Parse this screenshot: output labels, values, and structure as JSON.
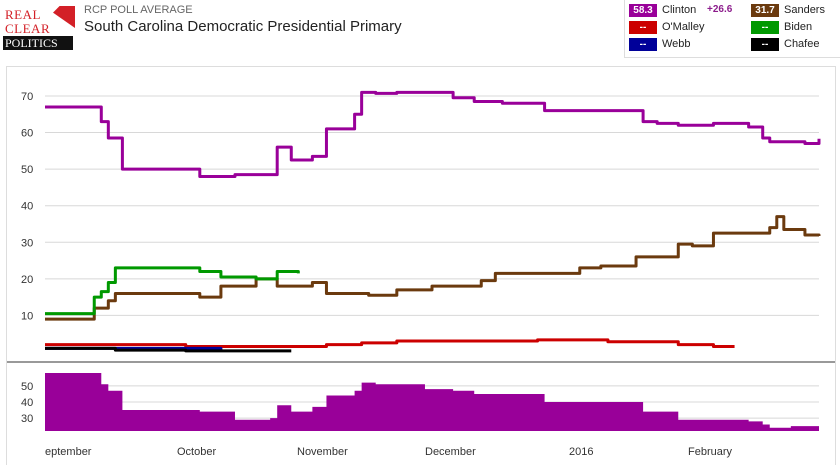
{
  "header": {
    "logo": {
      "line1": "REAL",
      "line2": "CLEAR",
      "line3": "POLITICS"
    },
    "kicker": "RCP POLL AVERAGE",
    "title": "South Carolina Democratic Presidential Primary"
  },
  "legend": [
    {
      "value": "58.3",
      "name": "Clinton",
      "spread": "+26.6",
      "color": "#990099"
    },
    {
      "value": "31.7",
      "name": "Sanders",
      "spread": "",
      "color": "#6b3a0e"
    },
    {
      "value": "--",
      "name": "O'Malley",
      "spread": "",
      "color": "#cc0000"
    },
    {
      "value": "--",
      "name": "Biden",
      "spread": "",
      "color": "#009900"
    },
    {
      "value": "--",
      "name": "Webb",
      "spread": "",
      "color": "#000099"
    },
    {
      "value": "--",
      "name": "Chafee",
      "spread": "",
      "color": "#000000"
    }
  ],
  "chart_data": {
    "type": "line",
    "title": "South Carolina Democratic Presidential Primary",
    "ylim": [
      0,
      73
    ],
    "yticks": [
      "70",
      "60",
      "50",
      "40",
      "30",
      "20",
      "10"
    ],
    "lower_ylim": [
      22,
      58
    ],
    "lower_yticks": [
      "50",
      "40",
      "30"
    ],
    "x_labels": [
      "eptember",
      "October",
      "November",
      "December",
      "2016",
      "February"
    ],
    "series": [
      {
        "name": "Clinton",
        "color": "#990099",
        "x": [
          0,
          6,
          8,
          9,
          10,
          11,
          12,
          14,
          20,
          22,
          27,
          32,
          33,
          35,
          37,
          38,
          40,
          42,
          44,
          45,
          47,
          50,
          54,
          58,
          61,
          65,
          68,
          71,
          72,
          75,
          80,
          84,
          85,
          87,
          90,
          92,
          95,
          98,
          100,
          102,
          103,
          105,
          106,
          108,
          110
        ],
        "values": [
          67,
          67,
          63,
          58.5,
          58.5,
          50,
          50,
          50,
          50,
          48,
          48.5,
          48.5,
          56,
          52.5,
          52.5,
          53.5,
          61,
          61,
          65,
          71,
          70.7,
          71,
          71,
          69.5,
          68.5,
          68,
          68,
          66,
          66,
          66,
          66,
          66,
          63,
          62.5,
          62,
          62,
          62.5,
          62.5,
          61.5,
          58.5,
          57.5,
          57.5,
          57.5,
          57,
          58.3
        ]
      },
      {
        "name": "Sanders",
        "color": "#6b3a0e",
        "x": [
          0,
          6,
          7,
          8,
          9,
          10,
          14,
          20,
          22,
          25,
          27,
          30,
          32,
          33,
          35,
          38,
          40,
          44,
          46,
          49,
          50,
          55,
          62,
          64,
          70,
          76,
          79,
          84,
          86,
          88,
          90,
          92,
          95,
          98,
          100,
          102,
          103,
          104,
          105,
          106,
          108,
          110
        ],
        "values": [
          9,
          9,
          12,
          12,
          14,
          16,
          16,
          16,
          15,
          18,
          18,
          20,
          20,
          18,
          18,
          19,
          16,
          16,
          15.5,
          15.5,
          17,
          18,
          19.5,
          21.5,
          21.5,
          23,
          23.5,
          26,
          26,
          26,
          29.5,
          29,
          32.5,
          32.5,
          32.5,
          32.5,
          34,
          37,
          33.5,
          33.5,
          32,
          31.7
        ]
      },
      {
        "name": "O'Malley",
        "color": "#cc0000",
        "x": [
          0,
          10,
          20,
          30,
          35,
          40,
          45,
          50,
          55,
          60,
          65,
          70,
          75,
          80,
          85,
          90,
          95,
          98
        ],
        "values": [
          2,
          2,
          1.5,
          1.5,
          1.5,
          2,
          2.5,
          3,
          3,
          3,
          3,
          3.3,
          3.3,
          2.8,
          2.8,
          2,
          1.5,
          1.5
        ]
      },
      {
        "name": "Biden",
        "color": "#009900",
        "x": [
          0,
          6,
          7,
          8,
          9,
          10,
          14,
          20,
          22,
          25,
          30,
          32,
          33,
          35,
          36
        ],
        "values": [
          10.5,
          10.5,
          15,
          16.5,
          19,
          23,
          23,
          23,
          22,
          20.5,
          20,
          20,
          22,
          22,
          21.5
        ]
      },
      {
        "name": "Webb",
        "color": "#000099",
        "x": [
          0,
          10,
          20,
          25
        ],
        "values": [
          1,
          1,
          1,
          0.5
        ]
      },
      {
        "name": "Chafee",
        "color": "#000000",
        "x": [
          0,
          10,
          20,
          25,
          30,
          35
        ],
        "values": [
          1,
          0.5,
          0.3,
          0.3,
          0.3,
          0.3
        ]
      }
    ],
    "spread": {
      "name": "Clinton spread",
      "color": "#990099",
      "x": [
        0,
        6,
        8,
        9,
        10,
        11,
        12,
        14,
        20,
        22,
        27,
        32,
        33,
        35,
        37,
        38,
        40,
        42,
        44,
        45,
        47,
        50,
        54,
        58,
        61,
        65,
        68,
        71,
        72,
        75,
        80,
        84,
        85,
        87,
        90,
        92,
        95,
        98,
        100,
        102,
        103,
        105,
        106,
        108,
        110
      ],
      "values": [
        58,
        58,
        51,
        47,
        47,
        35,
        35,
        35,
        35,
        34,
        29,
        30,
        38,
        34,
        34,
        37,
        44,
        44,
        47,
        52,
        51,
        51,
        48,
        47,
        45,
        45,
        45,
        40,
        40,
        40,
        40,
        40,
        34,
        34,
        29,
        29,
        29,
        29,
        28,
        26,
        24,
        24,
        25,
        25,
        26.6
      ]
    },
    "x_max": 110
  }
}
